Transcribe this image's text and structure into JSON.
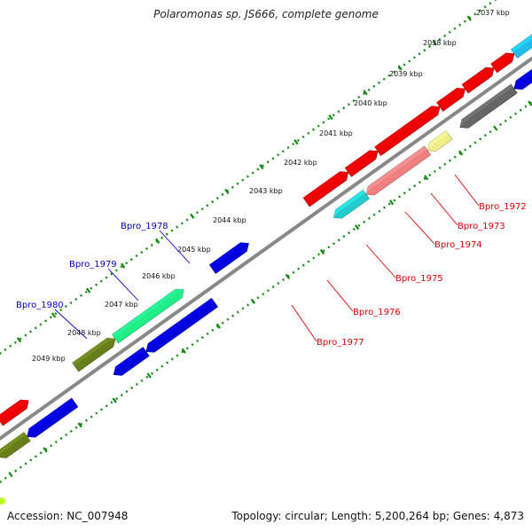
{
  "title": "Polaromonas sp. JS666, complete genome",
  "footer": {
    "accession": "Accession: NC_007948",
    "summary": "Topology: circular; Length: 5,200,264 bp; Genes: 4,873"
  },
  "colors": {
    "backbone": "#888888",
    "tick_marks": "#118811",
    "gene_label_plus": "#0000cc",
    "gene_label_minus": "#dd0000"
  },
  "position_labels": [
    "2037 kbp",
    "2038 kbp",
    "2039 kbp",
    "2040 kbp",
    "2041 kbp",
    "2042 kbp",
    "2043 kbp",
    "2044 kbp",
    "2045 kbp",
    "2046 kbp",
    "2047 kbp",
    "2048 kbp",
    "2049 kbp"
  ],
  "gene_labels": [
    {
      "name": "Bpro_1972",
      "strand": "minus"
    },
    {
      "name": "Bpro_1973",
      "strand": "minus"
    },
    {
      "name": "Bpro_1974",
      "strand": "minus"
    },
    {
      "name": "Bpro_1975",
      "strand": "minus"
    },
    {
      "name": "Bpro_1976",
      "strand": "minus"
    },
    {
      "name": "Bpro_1977",
      "strand": "minus"
    },
    {
      "name": "Bpro_1978",
      "strand": "plus"
    },
    {
      "name": "Bpro_1979",
      "strand": "plus"
    },
    {
      "name": "Bpro_1980",
      "strand": "plus"
    }
  ]
}
